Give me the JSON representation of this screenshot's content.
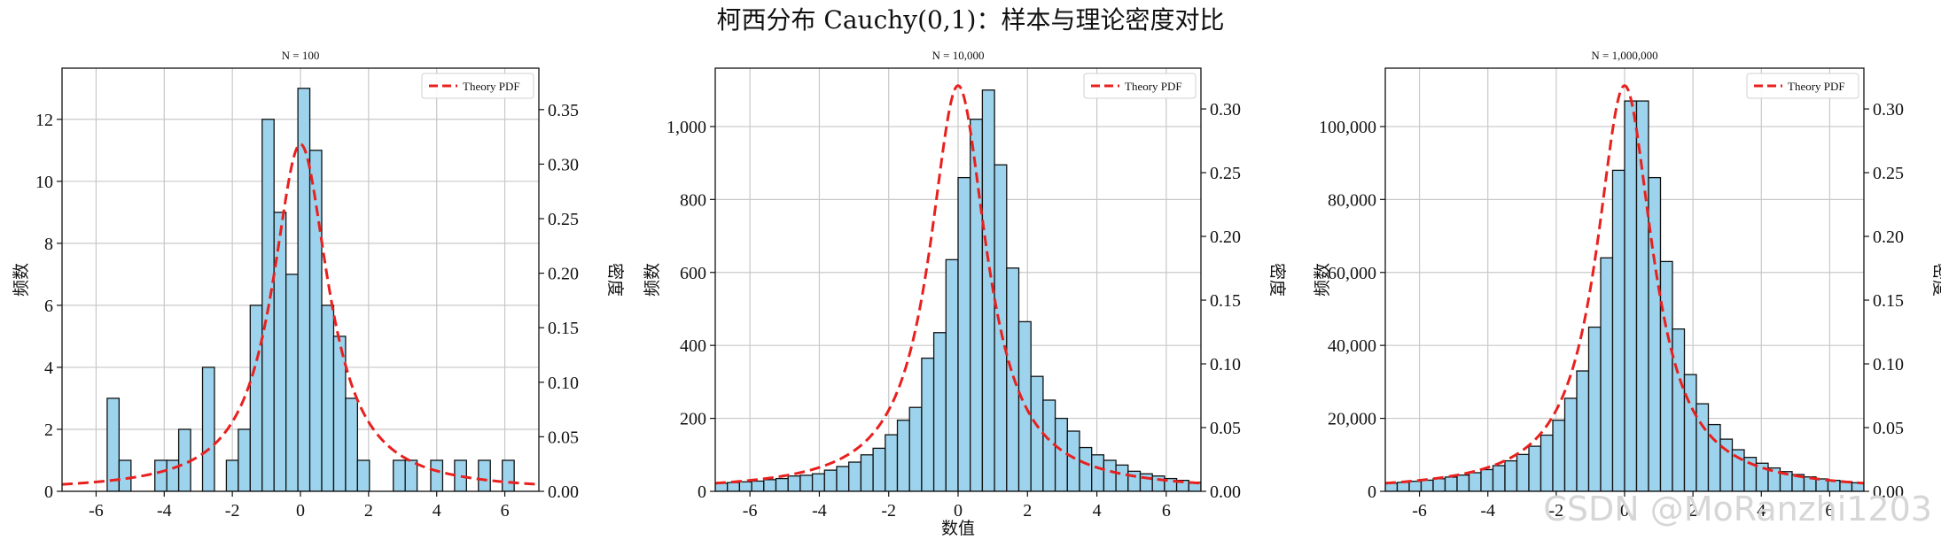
{
  "title": "柯西分布 Cauchy(0,1)：样本与理论密度对比",
  "watermark": "CSDN @MoRanzhi1203",
  "colors": {
    "bar_fill": "#9dd3ec",
    "bar_edge": "#111111",
    "pdf_line": "#e8201e",
    "grid": "#c8c8c8"
  },
  "chart_data": [
    {
      "type": "bar",
      "title": "N = 100",
      "xlabel": "",
      "ylabel": "频数",
      "y2label": "密度",
      "xlim": [
        -7,
        7
      ],
      "ylim": [
        0,
        13.65
      ],
      "y2lim": [
        0,
        0.388
      ],
      "xticks": [
        "-6",
        "-4",
        "-2",
        "0",
        "2",
        "4",
        "6"
      ],
      "xtick_values": [
        -6,
        -4,
        -2,
        0,
        2,
        4,
        6
      ],
      "yticks": [
        "0",
        "2",
        "4",
        "6",
        "8",
        "10",
        "12"
      ],
      "ytick_values": [
        0,
        2,
        4,
        6,
        8,
        10,
        12
      ],
      "y2ticks": [
        "0.00",
        "0.05",
        "0.10",
        "0.15",
        "0.20",
        "0.25",
        "0.30",
        "0.35"
      ],
      "y2tick_values": [
        0,
        0.05,
        0.1,
        0.15,
        0.2,
        0.25,
        0.3,
        0.35
      ],
      "grid": true,
      "legend": {
        "position": "top-right",
        "label": "Theory PDF"
      },
      "bin_width": 0.35,
      "bin_centers": [
        -5.5,
        -5.15,
        -4.1,
        -3.75,
        -3.4,
        -2.7,
        -2.0,
        -1.65,
        -1.3,
        -0.95,
        -0.6,
        -0.25,
        0.1,
        0.45,
        0.8,
        1.15,
        1.5,
        1.85,
        2.9,
        3.25,
        4.0,
        4.7,
        5.4,
        6.1
      ],
      "counts": [
        3,
        1,
        1,
        1,
        2,
        4,
        1,
        2,
        6,
        12,
        9,
        7,
        13,
        11,
        6,
        5,
        3,
        1,
        1,
        1,
        1,
        1,
        1,
        1
      ],
      "pdf": {
        "name": "Theory PDF",
        "location": 0,
        "scale": 1
      }
    },
    {
      "type": "bar",
      "title": "N = 10,000",
      "xlabel": "数值",
      "ylabel": "频数",
      "y2label": "密度",
      "xlim": [
        -7,
        7
      ],
      "ylim": [
        0,
        1160
      ],
      "y2lim": [
        0,
        0.332
      ],
      "xticks": [
        "-6",
        "-4",
        "-2",
        "0",
        "2",
        "4",
        "6"
      ],
      "xtick_values": [
        -6,
        -4,
        -2,
        0,
        2,
        4,
        6
      ],
      "yticks": [
        "0",
        "200",
        "400",
        "600",
        "800",
        "1,000"
      ],
      "ytick_values": [
        0,
        200,
        400,
        600,
        800,
        1000
      ],
      "y2ticks": [
        "0.00",
        "0.05",
        "0.10",
        "0.15",
        "0.20",
        "0.25",
        "0.30"
      ],
      "y2tick_values": [
        0,
        0.05,
        0.1,
        0.15,
        0.2,
        0.25,
        0.3
      ],
      "grid": true,
      "legend": {
        "position": "top-right",
        "label": "Theory PDF"
      },
      "bin_width": 0.35,
      "bin_start": -7,
      "counts": [
        22,
        24,
        26,
        28,
        32,
        35,
        42,
        44,
        48,
        58,
        68,
        80,
        100,
        118,
        155,
        195,
        230,
        365,
        435,
        635,
        860,
        1020,
        1100,
        895,
        612,
        465,
        315,
        250,
        200,
        165,
        120,
        100,
        85,
        72,
        55,
        48,
        42,
        35,
        30,
        25
      ],
      "pdf": {
        "name": "Theory PDF",
        "location": 0,
        "scale": 1
      }
    },
    {
      "type": "bar",
      "title": "N = 1,000,000",
      "xlabel": "",
      "ylabel": "频数",
      "y2label": "密度",
      "xlim": [
        -7,
        7
      ],
      "ylim": [
        0,
        116000
      ],
      "y2lim": [
        0,
        0.332
      ],
      "xticks": [
        "-6",
        "-4",
        "-2",
        "0",
        "2",
        "4",
        "6"
      ],
      "xtick_values": [
        -6,
        -4,
        -2,
        0,
        2,
        4,
        6
      ],
      "yticks": [
        "0",
        "20,000",
        "40,000",
        "60,000",
        "80,000",
        "100,000"
      ],
      "ytick_values": [
        0,
        20000,
        40000,
        60000,
        80000,
        100000
      ],
      "y2ticks": [
        "0.00",
        "0.05",
        "0.10",
        "0.15",
        "0.20",
        "0.25",
        "0.30"
      ],
      "y2tick_values": [
        0,
        0.05,
        0.1,
        0.15,
        0.2,
        0.25,
        0.3
      ],
      "grid": true,
      "legend": {
        "position": "top-right",
        "label": "Theory PDF"
      },
      "bin_width": 0.35,
      "bin_start": -7,
      "counts": [
        2200,
        2450,
        2750,
        3050,
        3450,
        3900,
        4450,
        5100,
        5950,
        7050,
        8350,
        10100,
        12350,
        15400,
        19500,
        25500,
        33000,
        45000,
        64000,
        88000,
        107000,
        107000,
        86000,
        63000,
        44500,
        32000,
        24000,
        18300,
        14300,
        11400,
        9300,
        7700,
        6400,
        5400,
        4600,
        3950,
        3400,
        3000,
        2650,
        2350
      ],
      "pdf": {
        "name": "Theory PDF",
        "location": 0,
        "scale": 1
      }
    }
  ]
}
